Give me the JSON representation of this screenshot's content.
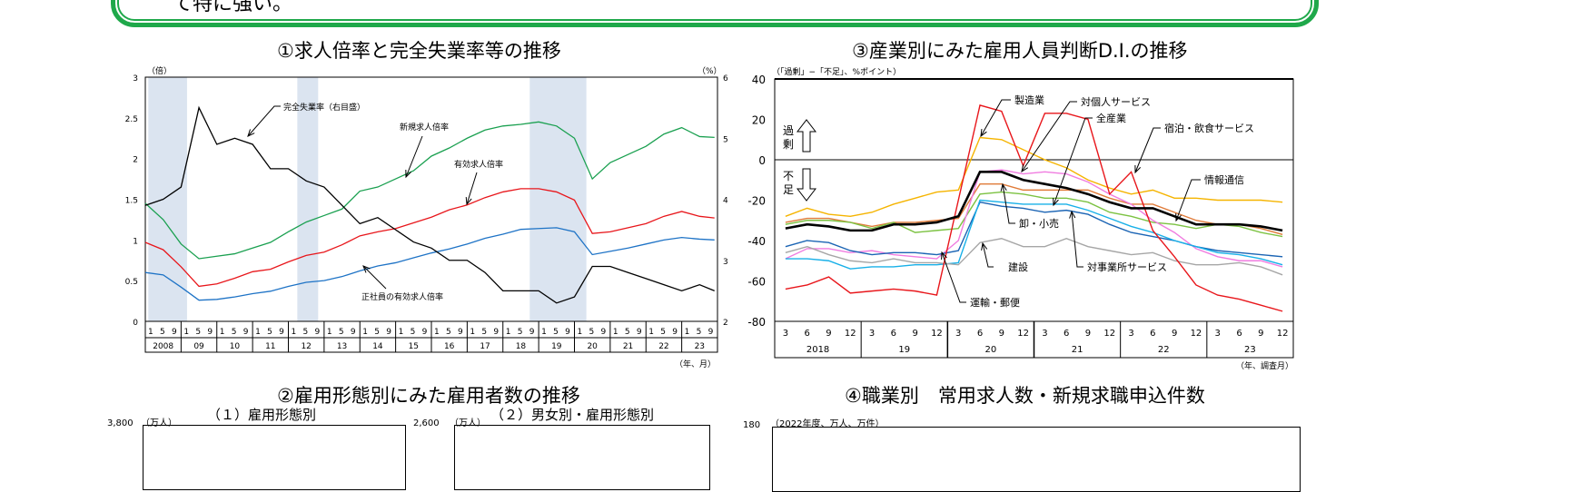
{
  "summary_box": {
    "text": "て特に強い。",
    "border_color": "#1fa84a"
  },
  "chart1": {
    "title": "①求人倍率と完全失業率等の推移",
    "left_unit": "（倍）",
    "right_unit": "（%）",
    "x_unit": "（年、月）",
    "left_ticks": [
      "0",
      "0.5",
      "1",
      "1.5",
      "2",
      "2.5",
      "3"
    ],
    "right_ticks": [
      "2",
      "3",
      "4",
      "5",
      "6"
    ],
    "year_labels": [
      "2008",
      "09",
      "10",
      "11",
      "12",
      "13",
      "14",
      "15",
      "16",
      "17",
      "18",
      "19",
      "20",
      "21",
      "22",
      "23"
    ],
    "month_labels": [
      "1",
      "5",
      "9"
    ],
    "annotations": {
      "unemployment": "完全失業率（右目盛）",
      "new_ratio": "新規求人倍率",
      "effective_ratio": "有効求人倍率",
      "regular_ratio": "正社員の有効求人倍率"
    }
  },
  "chart3": {
    "title": "③産業別にみた雇用人員判断D.I.の推移",
    "unit": "（「過剰」−「不足」、%ポイント）",
    "x_unit": "（年、調査月）",
    "y_ticks": [
      "40",
      "20",
      "0",
      "-20",
      "-40",
      "-60",
      "-80"
    ],
    "quarter_labels": [
      "3",
      "6",
      "9",
      "12"
    ],
    "year_labels": [
      "2018",
      "19",
      "20",
      "21",
      "22",
      "23"
    ],
    "surplus_label": "過剰",
    "shortage_label": "不足",
    "annotations": {
      "manufacturing": "製造業",
      "personal_services": "対個人サービス",
      "all_industries": "全産業",
      "accommodation": "宿泊・飲食サービス",
      "ict": "情報通信",
      "wholesale_retail": "卸・小売",
      "construction": "建設",
      "business_services": "対事業所サービス",
      "transport": "運輸・郵便"
    }
  },
  "section2": {
    "title": "②雇用形態別にみた雇用者数の推移",
    "sub1": "（１）雇用形態別",
    "sub2": "（２）男女別・雇用形態別",
    "unit": "（万人）",
    "tick1": "3,800",
    "tick2": "2,600"
  },
  "section4": {
    "title": "④職業別　常用求人数・新規求職申込件数",
    "unit": "（2022年度、万人、万件）",
    "tick": "180"
  },
  "chart_data": [
    {
      "type": "line",
      "title": "①求人倍率と完全失業率等の推移",
      "xlabel": "（年、月）",
      "ylabel": "（倍）",
      "y2label": "（%）",
      "ylim": [
        0,
        3
      ],
      "y2lim": [
        2,
        6
      ],
      "grid": false,
      "shaded_periods": [
        [
          "2008-02",
          "2009-03"
        ],
        [
          "2012-04",
          "2012-11"
        ],
        [
          "2018-10",
          "2020-05"
        ]
      ],
      "x": [
        "2008-01",
        "2008-07",
        "2009-01",
        "2009-07",
        "2010-01",
        "2010-07",
        "2011-01",
        "2011-07",
        "2012-01",
        "2012-07",
        "2013-01",
        "2013-07",
        "2014-01",
        "2014-07",
        "2015-01",
        "2015-07",
        "2016-01",
        "2016-07",
        "2017-01",
        "2017-07",
        "2018-01",
        "2018-07",
        "2019-01",
        "2019-07",
        "2020-01",
        "2020-07",
        "2021-01",
        "2021-07",
        "2022-01",
        "2022-07",
        "2023-01",
        "2023-07",
        "2023-12"
      ],
      "series": [
        {
          "name": "新規求人倍率",
          "axis": "left",
          "color": "#1aa050",
          "values": [
            1.45,
            1.25,
            0.95,
            0.77,
            0.8,
            0.83,
            0.9,
            0.97,
            1.1,
            1.22,
            1.3,
            1.38,
            1.6,
            1.65,
            1.75,
            1.85,
            2.03,
            2.13,
            2.25,
            2.35,
            2.4,
            2.42,
            2.45,
            2.4,
            2.25,
            1.75,
            1.95,
            2.05,
            2.15,
            2.3,
            2.38,
            2.27,
            2.26
          ]
        },
        {
          "name": "有効求人倍率",
          "axis": "left",
          "color": "#e8161b",
          "values": [
            0.97,
            0.88,
            0.67,
            0.43,
            0.46,
            0.53,
            0.61,
            0.64,
            0.73,
            0.81,
            0.85,
            0.94,
            1.05,
            1.1,
            1.14,
            1.21,
            1.28,
            1.37,
            1.43,
            1.52,
            1.59,
            1.63,
            1.63,
            1.59,
            1.49,
            1.08,
            1.1,
            1.15,
            1.2,
            1.29,
            1.35,
            1.29,
            1.27
          ]
        },
        {
          "name": "正社員の有効求人倍率",
          "axis": "left",
          "color": "#1e73c6",
          "values": [
            0.6,
            0.57,
            0.42,
            0.26,
            0.27,
            0.3,
            0.34,
            0.37,
            0.43,
            0.48,
            0.5,
            0.55,
            0.62,
            0.68,
            0.72,
            0.78,
            0.84,
            0.89,
            0.95,
            1.02,
            1.07,
            1.13,
            1.14,
            1.15,
            1.1,
            0.82,
            0.86,
            0.9,
            0.95,
            1.0,
            1.03,
            1.01,
            1.0
          ]
        },
        {
          "name": "完全失業率（右目盛）",
          "axis": "right",
          "color": "#000000",
          "values": [
            3.9,
            4.0,
            4.2,
            5.5,
            4.9,
            5.0,
            4.9,
            4.5,
            4.5,
            4.3,
            4.2,
            3.9,
            3.6,
            3.7,
            3.5,
            3.3,
            3.2,
            3.0,
            3.0,
            2.8,
            2.5,
            2.5,
            2.5,
            2.3,
            2.4,
            2.9,
            2.9,
            2.8,
            2.7,
            2.6,
            2.5,
            2.6,
            2.5
          ]
        }
      ]
    },
    {
      "type": "line",
      "title": "③産業別にみた雇用人員判断D.I.の推移",
      "xlabel": "（年、調査月）",
      "ylabel": "（「過剰」−「不足」、%ポイント）",
      "ylim": [
        -80,
        40
      ],
      "grid": false,
      "x": [
        "2018-03",
        "2018-06",
        "2018-09",
        "2018-12",
        "2019-03",
        "2019-06",
        "2019-09",
        "2019-12",
        "2020-03",
        "2020-06",
        "2020-09",
        "2020-12",
        "2021-03",
        "2021-06",
        "2021-09",
        "2021-12",
        "2022-03",
        "2022-06",
        "2022-09",
        "2022-12",
        "2023-03",
        "2023-06",
        "2023-09",
        "2023-12"
      ],
      "series": [
        {
          "name": "製造業",
          "color": "#f5b400",
          "values": [
            -28,
            -24,
            -27,
            -28,
            -26,
            -22,
            -19,
            -16,
            -15,
            11,
            10,
            5,
            0,
            -4,
            -10,
            -14,
            -17,
            -15,
            -19,
            -19,
            -20,
            -20,
            -20,
            -21
          ]
        },
        {
          "name": "卸・小売",
          "color": "#e07b39",
          "values": [
            -31,
            -29,
            -29,
            -31,
            -33,
            -31,
            -31,
            -30,
            -29,
            -12,
            -12,
            -15,
            -15,
            -15,
            -15,
            -19,
            -22,
            -22,
            -26,
            -30,
            -32,
            -32,
            -34,
            -37
          ]
        },
        {
          "name": "情報通信",
          "color": "#7cc242",
          "values": [
            -32,
            -30,
            -30,
            -31,
            -34,
            -31,
            -36,
            -35,
            -34,
            -17,
            -16,
            -17,
            -19,
            -19,
            -21,
            -26,
            -28,
            -31,
            -32,
            -34,
            -32,
            -33,
            -36,
            -38
          ]
        },
        {
          "name": "対個人サービス",
          "color": "#f07ce0",
          "values": [
            -49,
            -44,
            -44,
            -46,
            -45,
            -47,
            -48,
            -49,
            -40,
            -6,
            -5,
            -7,
            -6,
            -7,
            -11,
            -17,
            -22,
            -30,
            -36,
            -44,
            -48,
            -50,
            -50,
            -53
          ]
        },
        {
          "name": "対事業所サービス",
          "color": "#1b64b4",
          "values": [
            -43,
            -40,
            -41,
            -45,
            -47,
            -46,
            -46,
            -47,
            -45,
            -21,
            -23,
            -24,
            -26,
            -25,
            -27,
            -32,
            -36,
            -38,
            -40,
            -43,
            -45,
            -46,
            -47,
            -48
          ]
        },
        {
          "name": "運輸・郵便",
          "color": "#18b0e8",
          "values": [
            -49,
            -49,
            -50,
            -54,
            -53,
            -53,
            -52,
            -52,
            -51,
            -20,
            -21,
            -22,
            -22,
            -22,
            -25,
            -29,
            -33,
            -36,
            -40,
            -43,
            -46,
            -47,
            -49,
            -52
          ]
        },
        {
          "name": "建設",
          "color": "#a6a6a6",
          "values": [
            -46,
            -43,
            -47,
            -50,
            -51,
            -49,
            -51,
            -51,
            -52,
            -41,
            -39,
            -43,
            -43,
            -39,
            -43,
            -45,
            -47,
            -46,
            -50,
            -52,
            -52,
            -51,
            -53,
            -57
          ]
        },
        {
          "name": "宿泊・飲食サービス",
          "color": "#e8161b",
          "values": [
            -64,
            -62,
            -58,
            -66,
            -65,
            -64,
            -65,
            -67,
            -20,
            27,
            24,
            -3,
            23,
            23,
            20,
            -17,
            -6,
            -35,
            -48,
            -62,
            -67,
            -69,
            -72,
            -75
          ]
        },
        {
          "name": "全産業",
          "color": "#000000",
          "values": [
            -34,
            -32,
            -33,
            -35,
            -35,
            -32,
            -32,
            -31,
            -28,
            -6,
            -6,
            -10,
            -12,
            -14,
            -17,
            -21,
            -24,
            -24,
            -28,
            -32,
            -32,
            -32,
            -33,
            -35
          ]
        }
      ]
    }
  ]
}
